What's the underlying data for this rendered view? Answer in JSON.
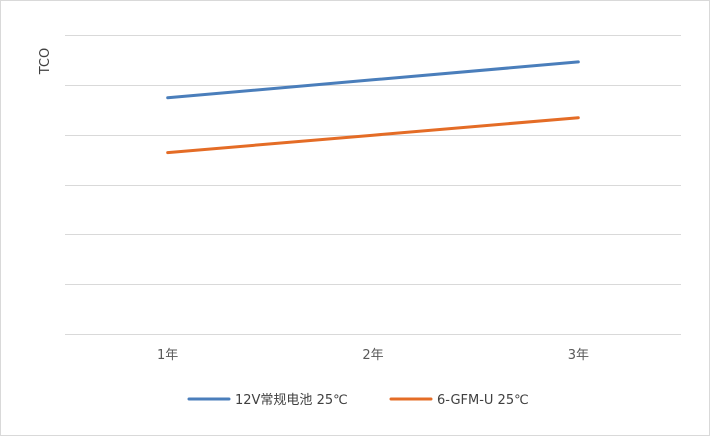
{
  "chart_data": {
    "type": "line",
    "title": "",
    "xlabel": "",
    "ylabel": "TCO",
    "categories": [
      "1年",
      "2年",
      "3年"
    ],
    "ylim": [
      0,
      6
    ],
    "y_tick_labels_shown": false,
    "grid": true,
    "legend_position": "bottom",
    "series": [
      {
        "name": "12V常规电池 25℃",
        "color": "#4a7ebb",
        "values": [
          4.74,
          5.1,
          5.46
        ]
      },
      {
        "name": "6-GFM-U 25℃",
        "color": "#e46c26",
        "values": [
          3.64,
          3.99,
          4.34
        ]
      }
    ]
  }
}
